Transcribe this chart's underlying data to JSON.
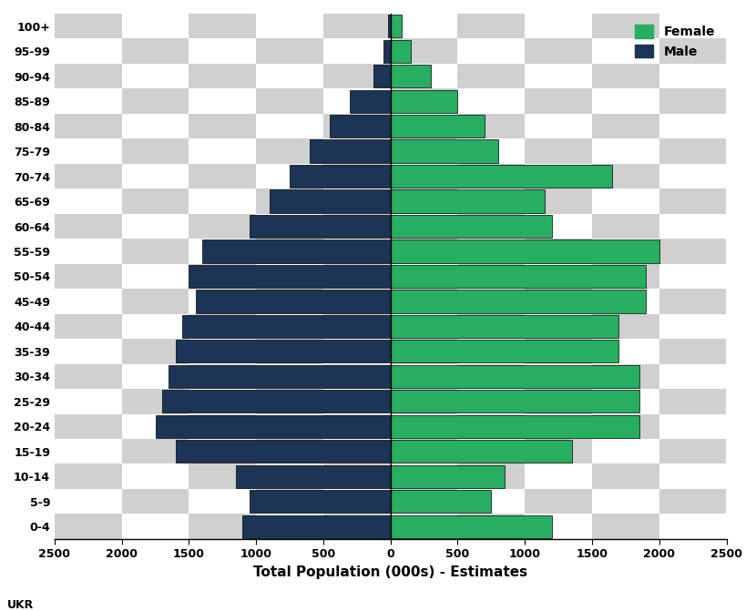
{
  "age_groups": [
    "0-4",
    "5-9",
    "10-14",
    "15-19",
    "20-24",
    "25-29",
    "30-34",
    "35-39",
    "40-44",
    "45-49",
    "50-54",
    "55-59",
    "60-64",
    "65-69",
    "70-74",
    "75-79",
    "80-84",
    "85-89",
    "90-94",
    "95-99",
    "100+"
  ],
  "male": [
    1100,
    1050,
    1150,
    1600,
    1750,
    1700,
    1650,
    1600,
    1550,
    1450,
    1500,
    1400,
    1050,
    900,
    750,
    600,
    450,
    300,
    130,
    50,
    20
  ],
  "female": [
    1200,
    750,
    850,
    1350,
    1850,
    1850,
    1850,
    1700,
    1700,
    1900,
    1900,
    2000,
    1200,
    1150,
    1650,
    800,
    700,
    500,
    300,
    150,
    80
  ],
  "male_color": "#1c3557",
  "female_color": "#27ae60",
  "xlabel": "Total Population (000s) - Estimates",
  "xlim": 2500,
  "footnote": "UKR",
  "legend_female": "Female",
  "legend_male": "Male",
  "cb_white": "#ffffff",
  "cb_gray": "#d0d0d0"
}
